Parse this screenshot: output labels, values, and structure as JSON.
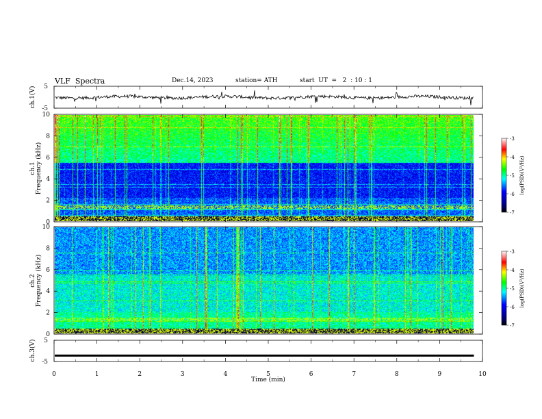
{
  "header": {
    "title": "VLF  Spectra",
    "date": "Dec.14, 2023",
    "station": "station= ATH",
    "start": "start  UT  =   2  : 10 : 1"
  },
  "chart_data": [
    {
      "type": "line",
      "ylabel": "ch.1(V)",
      "ylim": [
        -5,
        5
      ],
      "yticks": [
        "5",
        "-5"
      ],
      "xlim": [
        0,
        10
      ],
      "data_end_x": 9.8,
      "baseline": 0,
      "description_level": "noisy waveform near 0 V with impulsive spikes"
    },
    {
      "type": "heatmap",
      "ylabel": "ch.1\nFrequency  (kHz)",
      "ylim": [
        0,
        10
      ],
      "yticks": [
        "0",
        "2",
        "4",
        "6",
        "8",
        "10"
      ],
      "xlim": [
        0,
        10
      ],
      "data_end_x": 9.8,
      "colorbar": {
        "label": "log(PSD)(V²/Hz)",
        "ticks": [
          "-3",
          "-4",
          "-5",
          "-6",
          "-7"
        ],
        "range": [
          -7,
          -3
        ]
      },
      "colors": [
        "#000080",
        "#0000ff",
        "#00ffff",
        "#00ff00",
        "#ffff00",
        "#ff0000",
        "#ffffff"
      ]
    },
    {
      "type": "heatmap",
      "ylabel": "ch.2\nFrequency  (kHz)",
      "ylim": [
        0,
        10
      ],
      "yticks": [
        "0",
        "2",
        "4",
        "6",
        "8",
        "10"
      ],
      "xlim": [
        0,
        10
      ],
      "data_end_x": 9.8,
      "colorbar": {
        "label": "log(PSD)(V²/Hz)",
        "ticks": [
          "-3",
          "-4",
          "-5",
          "-6",
          "-7"
        ],
        "range": [
          -7,
          -3
        ]
      }
    },
    {
      "type": "line",
      "ylabel": "ch.3(V)",
      "ylim": [
        -5,
        5
      ],
      "yticks": [
        "5",
        "-5"
      ],
      "xlim": [
        0,
        10
      ],
      "data_end_x": 9.8,
      "baseline": -2.2
    }
  ],
  "xaxis": {
    "label": "Time  (min)",
    "ticks": [
      "0",
      "1",
      "2",
      "3",
      "4",
      "5",
      "6",
      "7",
      "8",
      "9",
      "10"
    ]
  }
}
